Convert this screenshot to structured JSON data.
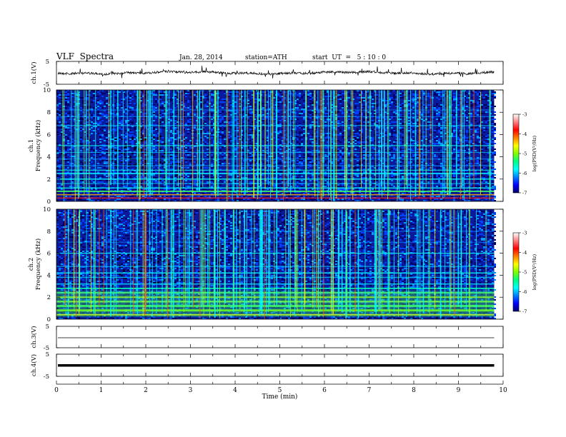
{
  "header": {
    "title": "VLF  Spectra",
    "date": "Jan. 28, 2014",
    "station": "station=ATH",
    "start": "start  UT  =   5 : 10 : 0"
  },
  "chart_data": [
    {
      "type": "line",
      "id": "ch1-waveform",
      "ylabel": "ch.1(V)",
      "ylim": [
        -5,
        5
      ],
      "yticks": [
        "5",
        "-5"
      ],
      "baseline": 0,
      "x_range_min": [
        0,
        9.8
      ]
    },
    {
      "type": "heatmap",
      "id": "ch1-spectrogram",
      "ylabel": "ch.1\nFrequency  (kHz)",
      "ylabel_lines": [
        "ch.1",
        "Frequency  (kHz)"
      ],
      "ylim": [
        0,
        10
      ],
      "yticks": [
        "0",
        "2",
        "4",
        "6",
        "8",
        "10"
      ],
      "colorbar": {
        "label": "log(PSD(V²/Hz)",
        "range": [
          -7,
          -3
        ],
        "ticks": [
          "-7",
          "-6",
          "-5",
          "-4",
          "-3"
        ]
      }
    },
    {
      "type": "heatmap",
      "id": "ch2-spectrogram",
      "ylabel_lines": [
        "ch.2",
        "Frequency  (kHz)"
      ],
      "ylim": [
        0,
        10
      ],
      "yticks": [
        "0",
        "2",
        "4",
        "6",
        "8",
        "10"
      ],
      "colorbar": {
        "label": "log(PSD(V²/Hz)",
        "range": [
          -7,
          -3
        ],
        "ticks": [
          "-7",
          "-6",
          "-5",
          "-4",
          "-3"
        ]
      }
    },
    {
      "type": "line",
      "id": "ch3-waveform",
      "ylabel": "ch.3(V)",
      "ylim": [
        -5,
        5
      ],
      "yticks": [
        "5",
        "-5"
      ],
      "baseline": 0
    },
    {
      "type": "line",
      "id": "ch4-waveform",
      "ylabel": "ch.4(V)",
      "ylim": [
        -5,
        5
      ],
      "yticks": [
        "5",
        "-5"
      ],
      "baseline": 0
    }
  ],
  "xaxis": {
    "label": "Time  (min)",
    "range": [
      0,
      10
    ],
    "ticks": [
      "0",
      "1",
      "2",
      "3",
      "4",
      "5",
      "6",
      "7",
      "8",
      "9",
      "10"
    ],
    "data_end": 9.8
  },
  "colormap": [
    "#000066",
    "#0000ff",
    "#0080ff",
    "#00ffff",
    "#00ff80",
    "#80ff00",
    "#ffff00",
    "#ff8000",
    "#ff0000",
    "#ff8080",
    "#ffffff"
  ]
}
